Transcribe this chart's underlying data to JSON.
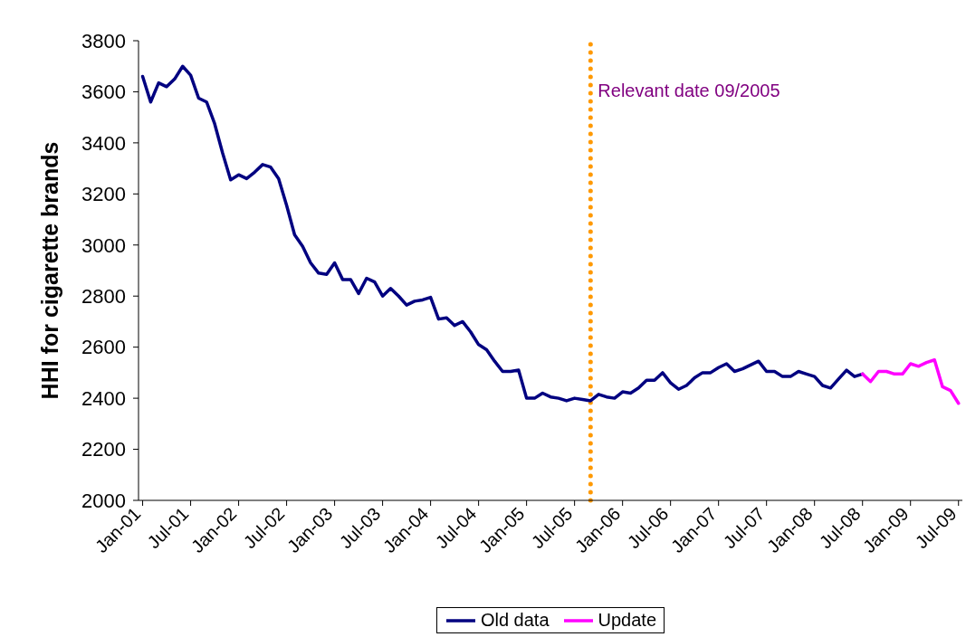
{
  "chart_data": {
    "type": "line",
    "ylabel": "HHI for cigarette brands",
    "x": [
      "2001-01",
      "2001-02",
      "2001-03",
      "2001-04",
      "2001-05",
      "2001-06",
      "2001-07",
      "2001-08",
      "2001-09",
      "2001-10",
      "2001-11",
      "2001-12",
      "2002-01",
      "2002-02",
      "2002-03",
      "2002-04",
      "2002-05",
      "2002-06",
      "2002-07",
      "2002-08",
      "2002-09",
      "2002-10",
      "2002-11",
      "2002-12",
      "2003-01",
      "2003-02",
      "2003-03",
      "2003-04",
      "2003-05",
      "2003-06",
      "2003-07",
      "2003-08",
      "2003-09",
      "2003-10",
      "2003-11",
      "2003-12",
      "2004-01",
      "2004-02",
      "2004-03",
      "2004-04",
      "2004-05",
      "2004-06",
      "2004-07",
      "2004-08",
      "2004-09",
      "2004-10",
      "2004-11",
      "2004-12",
      "2005-01",
      "2005-02",
      "2005-03",
      "2005-04",
      "2005-05",
      "2005-06",
      "2005-07",
      "2005-08",
      "2005-09",
      "2005-10",
      "2005-11",
      "2005-12",
      "2006-01",
      "2006-02",
      "2006-03",
      "2006-04",
      "2006-05",
      "2006-06",
      "2006-07",
      "2006-08",
      "2006-09",
      "2006-10",
      "2006-11",
      "2006-12",
      "2007-01",
      "2007-02",
      "2007-03",
      "2007-04",
      "2007-05",
      "2007-06",
      "2007-07",
      "2007-08",
      "2007-09",
      "2007-10",
      "2007-11",
      "2007-12",
      "2008-01",
      "2008-02",
      "2008-03",
      "2008-04",
      "2008-05",
      "2008-06",
      "2008-07",
      "2008-08",
      "2008-09",
      "2008-10",
      "2008-11",
      "2008-12",
      "2009-01",
      "2009-02",
      "2009-03",
      "2009-04",
      "2009-05",
      "2009-06",
      "2009-07"
    ],
    "xlim": [
      "2000-12-16",
      "2009-07-16"
    ],
    "xticks": [
      {
        "value": "2001-01",
        "label": "Jan-01"
      },
      {
        "value": "2001-07",
        "label": "Jul-01"
      },
      {
        "value": "2002-01",
        "label": "Jan-02"
      },
      {
        "value": "2002-07",
        "label": "Jul-02"
      },
      {
        "value": "2003-01",
        "label": "Jan-03"
      },
      {
        "value": "2003-07",
        "label": "Jul-03"
      },
      {
        "value": "2004-01",
        "label": "Jan-04"
      },
      {
        "value": "2004-07",
        "label": "Jul-04"
      },
      {
        "value": "2005-01",
        "label": "Jan-05"
      },
      {
        "value": "2005-07",
        "label": "Jul-05"
      },
      {
        "value": "2006-01",
        "label": "Jan-06"
      },
      {
        "value": "2006-07",
        "label": "Jul-06"
      },
      {
        "value": "2007-01",
        "label": "Jan-07"
      },
      {
        "value": "2007-07",
        "label": "Jul-07"
      },
      {
        "value": "2008-01",
        "label": "Jan-08"
      },
      {
        "value": "2008-07",
        "label": "Jul-08"
      },
      {
        "value": "2009-01",
        "label": "Jan-09"
      },
      {
        "value": "2009-07",
        "label": "Jul-09"
      }
    ],
    "ylim": [
      2000,
      3800
    ],
    "yticks": [
      2000,
      2200,
      2400,
      2600,
      2800,
      3000,
      3200,
      3400,
      3600,
      3800
    ],
    "series": [
      {
        "name": "Old data",
        "color": "#000080",
        "values": [
          3660,
          3560,
          3635,
          3620,
          3650,
          3700,
          3665,
          3575,
          3560,
          3475,
          3360,
          3255,
          3275,
          3260,
          3285,
          3315,
          3305,
          3260,
          3155,
          3040,
          2995,
          2930,
          2890,
          2885,
          2930,
          2865,
          2865,
          2810,
          2870,
          2855,
          2800,
          2830,
          2800,
          2765,
          2780,
          2785,
          2795,
          2710,
          2715,
          2685,
          2700,
          2660,
          2610,
          2590,
          2545,
          2505,
          2505,
          2510,
          2400,
          2400,
          2420,
          2405,
          2400,
          2390,
          2400,
          2395,
          2390,
          2415,
          2405,
          2400,
          2425,
          2420,
          2440,
          2470,
          2470,
          2500,
          2460,
          2435,
          2450,
          2480,
          2500,
          2500,
          2520,
          2535,
          2505,
          2515,
          2530,
          2545,
          2505,
          2505,
          2485,
          2485,
          2505,
          2495,
          2485,
          2450,
          2440,
          2475,
          2510,
          2485,
          2495,
          null,
          null,
          null,
          null,
          null,
          null,
          null,
          null,
          null,
          null,
          null,
          null
        ]
      },
      {
        "name": "Update",
        "color": "#ff00ff",
        "values": [
          null,
          null,
          null,
          null,
          null,
          null,
          null,
          null,
          null,
          null,
          null,
          null,
          null,
          null,
          null,
          null,
          null,
          null,
          null,
          null,
          null,
          null,
          null,
          null,
          null,
          null,
          null,
          null,
          null,
          null,
          null,
          null,
          null,
          null,
          null,
          null,
          null,
          null,
          null,
          null,
          null,
          null,
          null,
          null,
          null,
          null,
          null,
          null,
          null,
          null,
          null,
          null,
          null,
          null,
          null,
          null,
          null,
          null,
          null,
          null,
          null,
          null,
          null,
          null,
          null,
          null,
          null,
          null,
          null,
          null,
          null,
          null,
          null,
          null,
          null,
          null,
          null,
          null,
          null,
          null,
          null,
          null,
          null,
          null,
          null,
          null,
          null,
          null,
          null,
          null,
          2495,
          2465,
          2505,
          2505,
          2495,
          2495,
          2535,
          2525,
          2540,
          2550,
          2445,
          2430,
          2380
        ]
      }
    ],
    "ref_lines": [
      {
        "axis": "x",
        "value": "2005-09",
        "label": "Relevant date 09/2005",
        "color": "#ff9900",
        "line_style": "dotted"
      }
    ],
    "legend": "bottom",
    "marker": "none"
  }
}
